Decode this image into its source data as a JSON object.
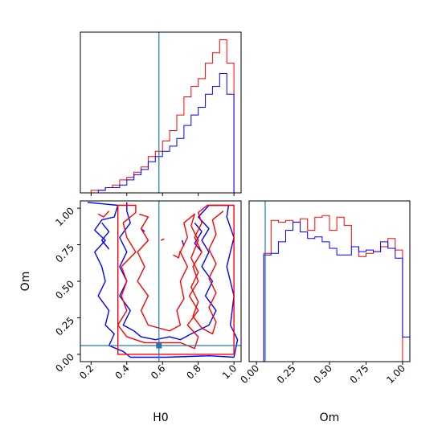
{
  "chart_data": {
    "type": "corner",
    "colors": {
      "red": "#ff0000",
      "blue": "#0000ff",
      "truth": "#1f77b4"
    },
    "truths": {
      "H0": 0.58,
      "Om": 0.06
    },
    "hist_H0": {
      "bins": [
        0.2,
        0.24,
        0.28,
        0.32,
        0.36,
        0.4,
        0.44,
        0.48,
        0.52,
        0.56,
        0.6,
        0.64,
        0.68,
        0.72,
        0.76,
        0.8,
        0.84,
        0.88,
        0.92,
        0.96,
        1.0
      ],
      "red": [
        1,
        1,
        2,
        3,
        5,
        6,
        8,
        10,
        14,
        16,
        20,
        24,
        30,
        37,
        41,
        44,
        50,
        54,
        59,
        50
      ],
      "blue": [
        0,
        1,
        2,
        2,
        3,
        5,
        7,
        9,
        12,
        14,
        16,
        18,
        21,
        26,
        30,
        33,
        38,
        41,
        46,
        38
      ]
    },
    "hist_Om": {
      "bins": [
        -0.05,
        0.0,
        0.05,
        0.1,
        0.15,
        0.2,
        0.25,
        0.3,
        0.35,
        0.4,
        0.45,
        0.5,
        0.55,
        0.6,
        0.65,
        0.7,
        0.75,
        0.8,
        0.85,
        0.9,
        0.95,
        1.0,
        1.05
      ],
      "red": [
        0,
        0,
        66,
        86,
        85,
        86,
        85,
        87,
        80,
        88,
        89,
        80,
        88,
        83,
        70,
        64,
        66,
        67,
        70,
        75,
        68,
        0
      ],
      "blue": [
        0,
        0,
        65,
        66,
        73,
        80,
        85,
        79,
        75,
        76,
        73,
        69,
        65,
        65,
        70,
        67,
        68,
        67,
        73,
        69,
        63,
        15
      ]
    },
    "axes": {
      "H0": {
        "label": "H0",
        "lim": [
          0.14,
          1.04
        ],
        "ticks": [
          "0.2",
          "0.4",
          "0.6",
          "0.8",
          "1.0"
        ]
      },
      "Om": {
        "label": "Om",
        "lim": [
          -0.05,
          1.05
        ],
        "ticks": [
          "0.00",
          "0.25",
          "0.50",
          "0.75",
          "1.00"
        ]
      }
    },
    "contours_red": [
      [
        [
          0.35,
          1.02
        ],
        [
          0.45,
          1.02
        ],
        [
          0.45,
          0.97
        ],
        [
          0.38,
          0.9
        ],
        [
          0.4,
          0.8
        ],
        [
          0.45,
          0.7
        ],
        [
          0.37,
          0.6
        ],
        [
          0.4,
          0.5
        ],
        [
          0.37,
          0.4
        ],
        [
          0.4,
          0.3
        ],
        [
          0.35,
          0.2
        ],
        [
          0.4,
          0.12
        ],
        [
          0.5,
          0.08
        ],
        [
          0.7,
          0.08
        ],
        [
          0.78,
          0.04
        ],
        [
          0.8,
          0.12
        ],
        [
          0.74,
          0.2
        ],
        [
          0.8,
          0.3
        ],
        [
          0.75,
          0.4
        ],
        [
          0.8,
          0.5
        ],
        [
          0.77,
          0.6
        ],
        [
          0.82,
          0.7
        ],
        [
          0.78,
          0.8
        ],
        [
          0.82,
          0.9
        ],
        [
          0.8,
          0.97
        ],
        [
          0.85,
          1.02
        ],
        [
          1.0,
          1.02
        ],
        [
          1.0,
          0.0
        ],
        [
          0.35,
          0.0
        ],
        [
          0.35,
          1.02
        ]
      ],
      [
        [
          0.47,
          0.96
        ],
        [
          0.52,
          0.94
        ],
        [
          0.48,
          0.86
        ],
        [
          0.52,
          0.78
        ],
        [
          0.46,
          0.7
        ],
        [
          0.5,
          0.6
        ],
        [
          0.46,
          0.5
        ],
        [
          0.52,
          0.4
        ],
        [
          0.48,
          0.3
        ],
        [
          0.52,
          0.2
        ],
        [
          0.64,
          0.16
        ],
        [
          0.7,
          0.2
        ],
        [
          0.68,
          0.3
        ],
        [
          0.72,
          0.38
        ],
        [
          0.7,
          0.5
        ],
        [
          0.74,
          0.6
        ],
        [
          0.7,
          0.7
        ],
        [
          0.74,
          0.8
        ],
        [
          0.72,
          0.9
        ],
        [
          0.78,
          0.96
        ],
        [
          0.76,
          0.88
        ],
        [
          0.8,
          0.78
        ],
        [
          0.76,
          0.66
        ],
        [
          0.8,
          0.56
        ],
        [
          0.76,
          0.46
        ],
        [
          0.8,
          0.36
        ],
        [
          0.77,
          0.26
        ],
        [
          0.82,
          0.18
        ],
        [
          0.88,
          0.14
        ],
        [
          0.9,
          0.22
        ],
        [
          0.86,
          0.32
        ],
        [
          0.9,
          0.42
        ],
        [
          0.86,
          0.52
        ],
        [
          0.9,
          0.62
        ],
        [
          0.86,
          0.72
        ],
        [
          0.9,
          0.82
        ],
        [
          0.88,
          0.92
        ],
        [
          0.94,
          0.98
        ]
      ],
      [
        [
          0.24,
          0.96
        ],
        [
          0.27,
          0.94
        ],
        [
          0.3,
          0.98
        ]
      ],
      [
        [
          0.66,
          0.68
        ],
        [
          0.69,
          0.66
        ],
        [
          0.7,
          0.71
        ]
      ],
      [
        [
          0.59,
          0.78
        ],
        [
          0.61,
          0.79
        ]
      ]
    ],
    "contours_blue": [
      [
        [
          0.18,
          1.04
        ],
        [
          0.35,
          1.02
        ],
        [
          0.33,
          0.94
        ],
        [
          0.26,
          0.92
        ],
        [
          0.22,
          0.85
        ],
        [
          0.28,
          0.78
        ],
        [
          0.22,
          0.7
        ],
        [
          0.26,
          0.6
        ],
        [
          0.28,
          0.5
        ],
        [
          0.24,
          0.4
        ],
        [
          0.3,
          0.3
        ],
        [
          0.28,
          0.2
        ],
        [
          0.33,
          0.14
        ],
        [
          0.3,
          0.06
        ],
        [
          0.38,
          0.02
        ],
        [
          0.42,
          -0.02
        ],
        [
          0.62,
          -0.02
        ],
        [
          0.86,
          -0.01
        ],
        [
          1.0,
          -0.02
        ],
        [
          1.02,
          0.1
        ],
        [
          0.98,
          0.2
        ],
        [
          1.0,
          0.4
        ],
        [
          0.96,
          0.6
        ],
        [
          1.0,
          0.8
        ],
        [
          0.96,
          0.94
        ],
        [
          0.97,
          1.02
        ],
        [
          0.86,
          1.02
        ],
        [
          0.8,
          0.94
        ],
        [
          0.86,
          0.86
        ],
        [
          0.82,
          0.78
        ],
        [
          0.86,
          0.7
        ],
        [
          0.82,
          0.6
        ],
        [
          0.88,
          0.5
        ],
        [
          0.84,
          0.4
        ],
        [
          0.9,
          0.3
        ],
        [
          0.86,
          0.2
        ],
        [
          0.76,
          0.14
        ],
        [
          0.7,
          0.1
        ],
        [
          0.64,
          0.12
        ],
        [
          0.56,
          0.1
        ],
        [
          0.48,
          0.12
        ],
        [
          0.44,
          0.16
        ],
        [
          0.38,
          0.2
        ],
        [
          0.42,
          0.3
        ],
        [
          0.36,
          0.4
        ],
        [
          0.4,
          0.5
        ],
        [
          0.36,
          0.6
        ],
        [
          0.4,
          0.7
        ],
        [
          0.36,
          0.8
        ],
        [
          0.42,
          0.9
        ],
        [
          0.4,
          0.98
        ],
        [
          0.4,
          1.04
        ]
      ],
      [
        [
          0.26,
          0.9
        ],
        [
          0.3,
          0.84
        ],
        [
          0.26,
          0.78
        ],
        [
          0.3,
          0.72
        ]
      ],
      [
        [
          0.78,
          0.9
        ],
        [
          0.82,
          0.84
        ],
        [
          0.78,
          0.76
        ],
        [
          0.82,
          0.7
        ]
      ],
      [
        [
          0.71,
          0.78
        ],
        [
          0.72,
          0.74
        ]
      ],
      [
        [
          0.48,
          0.86
        ],
        [
          0.5,
          0.84
        ]
      ]
    ]
  }
}
